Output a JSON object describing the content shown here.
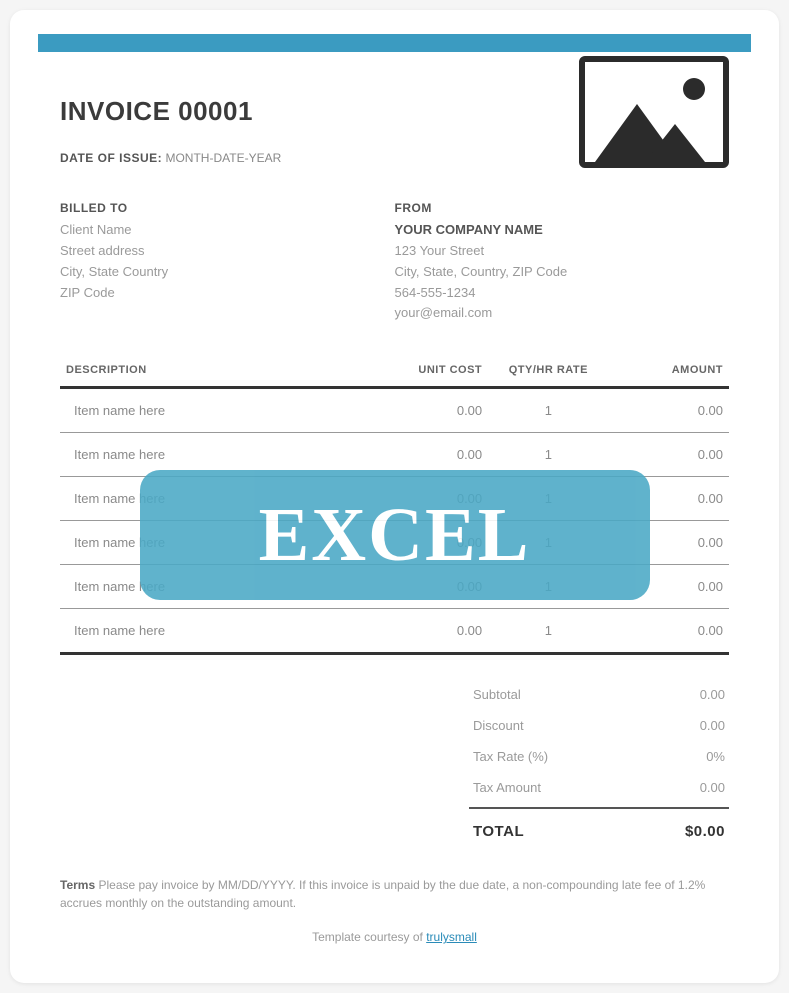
{
  "colors": {
    "accent": "#3b9bc1",
    "watermark_bg": "#4aa8c5",
    "text_dark": "#3b3b3b",
    "text_muted": "#9a9a9a",
    "rule_dark": "#333333"
  },
  "header": {
    "invoice_title": "INVOICE 00001",
    "date_label": "DATE OF ISSUE:",
    "date_value": "MONTH-DATE-YEAR"
  },
  "billed_to": {
    "heading": "BILLED TO",
    "lines": [
      "Client Name",
      "Street address",
      "City, State Country",
      "ZIP Code"
    ]
  },
  "from": {
    "heading": "FROM",
    "company": "YOUR COMPANY NAME",
    "lines": [
      "123 Your Street",
      "City, State, Country, ZIP Code",
      "564-555-1234",
      "your@email.com"
    ]
  },
  "table": {
    "columns": [
      "DESCRIPTION",
      "UNIT COST",
      "QTY/HR RATE",
      "AMOUNT"
    ],
    "rows": [
      {
        "desc": "Item name here",
        "unit": "0.00",
        "qty": "1",
        "amount": "0.00"
      },
      {
        "desc": "Item name here",
        "unit": "0.00",
        "qty": "1",
        "amount": "0.00"
      },
      {
        "desc": "Item name here",
        "unit": "0.00",
        "qty": "1",
        "amount": "0.00"
      },
      {
        "desc": "Item name here",
        "unit": "0.00",
        "qty": "1",
        "amount": "0.00"
      },
      {
        "desc": "Item name here",
        "unit": "0.00",
        "qty": "1",
        "amount": "0.00"
      },
      {
        "desc": "Item name here",
        "unit": "0.00",
        "qty": "1",
        "amount": "0.00"
      }
    ]
  },
  "totals": {
    "subtotal_label": "Subtotal",
    "subtotal": "0.00",
    "discount_label": "Discount",
    "discount": "0.00",
    "taxrate_label": "Tax Rate (%)",
    "taxrate": "0%",
    "taxamt_label": "Tax Amount",
    "taxamt": "0.00",
    "total_label": "TOTAL",
    "total": "$0.00"
  },
  "terms": {
    "label": "Terms",
    "text": "Please pay invoice by MM/DD/YYYY. If this invoice is unpaid by the due date, a non-compounding late fee of 1.2% accrues monthly on the outstanding amount."
  },
  "courtesy": {
    "prefix": "Template courtesy of ",
    "link_text": "trulysmall"
  },
  "watermark": {
    "text": "EXCEL"
  }
}
